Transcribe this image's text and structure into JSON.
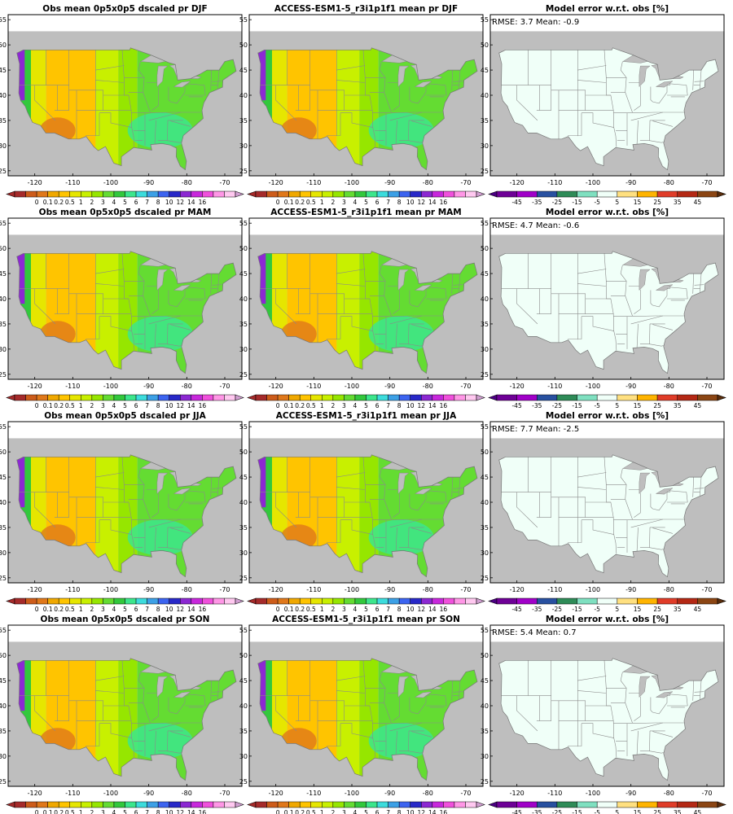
{
  "rows": [
    {
      "season": "DJF",
      "obs_title": "Obs mean 0p5x0p5 dscaled pr DJF",
      "model_title": "ACCESS-ESM1-5_r3i1p1f1 mean pr DJF",
      "err_title": "Model error w.r.t. obs [%]",
      "stats": "RMSE: 3.7  Mean: -0.9"
    },
    {
      "season": "MAM",
      "obs_title": "Obs mean 0p5x0p5 dscaled pr MAM",
      "model_title": "ACCESS-ESM1-5_r3i1p1f1 mean pr MAM",
      "err_title": "Model error w.r.t. obs [%]",
      "stats": "RMSE: 4.7  Mean: -0.6"
    },
    {
      "season": "JJA",
      "obs_title": "Obs mean 0p5x0p5 dscaled pr JJA",
      "model_title": "ACCESS-ESM1-5_r3i1p1f1 mean pr JJA",
      "err_title": "Model error w.r.t. obs [%]",
      "stats": "RMSE: 7.7  Mean: -2.5"
    },
    {
      "season": "SON",
      "obs_title": "Obs mean 0p5x0p5 dscaled pr SON",
      "model_title": "ACCESS-ESM1-5_r3i1p1f1 mean pr SON",
      "err_title": "Model error w.r.t. obs [%]",
      "stats": "RMSE: 5.4  Mean: 0.7"
    }
  ],
  "axes": {
    "lon_ticks": [
      "-120",
      "-110",
      "-100",
      "-90",
      "-80",
      "-70"
    ],
    "lat_ticks": [
      "25",
      "30",
      "35",
      "40",
      "45",
      "50",
      "55"
    ]
  },
  "pr_colorbar": {
    "labels": [
      "0",
      "0.1",
      "0.2",
      "0.5",
      "1",
      "2",
      "3",
      "4",
      "5",
      "6",
      "7",
      "8",
      "10",
      "12",
      "14",
      "16"
    ],
    "colors": [
      "#a52a2a",
      "#cd5c1a",
      "#e0781a",
      "#f0a800",
      "#ffc400",
      "#e6e600",
      "#c8f000",
      "#96e600",
      "#64dc32",
      "#32c83c",
      "#3ce68c",
      "#3cdcdc",
      "#3ca0e6",
      "#3c64f0",
      "#2828c8",
      "#8c28d2",
      "#c828dc",
      "#f050dc",
      "#ff96e6",
      "#ffc8f0"
    ],
    "under_color": "#a52a2a",
    "over_color": "#d2a0d2"
  },
  "err_colorbar": {
    "labels": [
      "-45",
      "-35",
      "-25",
      "-15",
      "-5",
      "5",
      "15",
      "25",
      "35",
      "45"
    ],
    "colors": [
      "#6e0096",
      "#a000c8",
      "#2850a0",
      "#2e8b57",
      "#7fe0c0",
      "#f0fff8",
      "#ffe080",
      "#ffb400",
      "#e03c28",
      "#b42814",
      "#8b4513"
    ],
    "under_color": "#4b0082",
    "over_color": "#5a2d0c"
  }
}
